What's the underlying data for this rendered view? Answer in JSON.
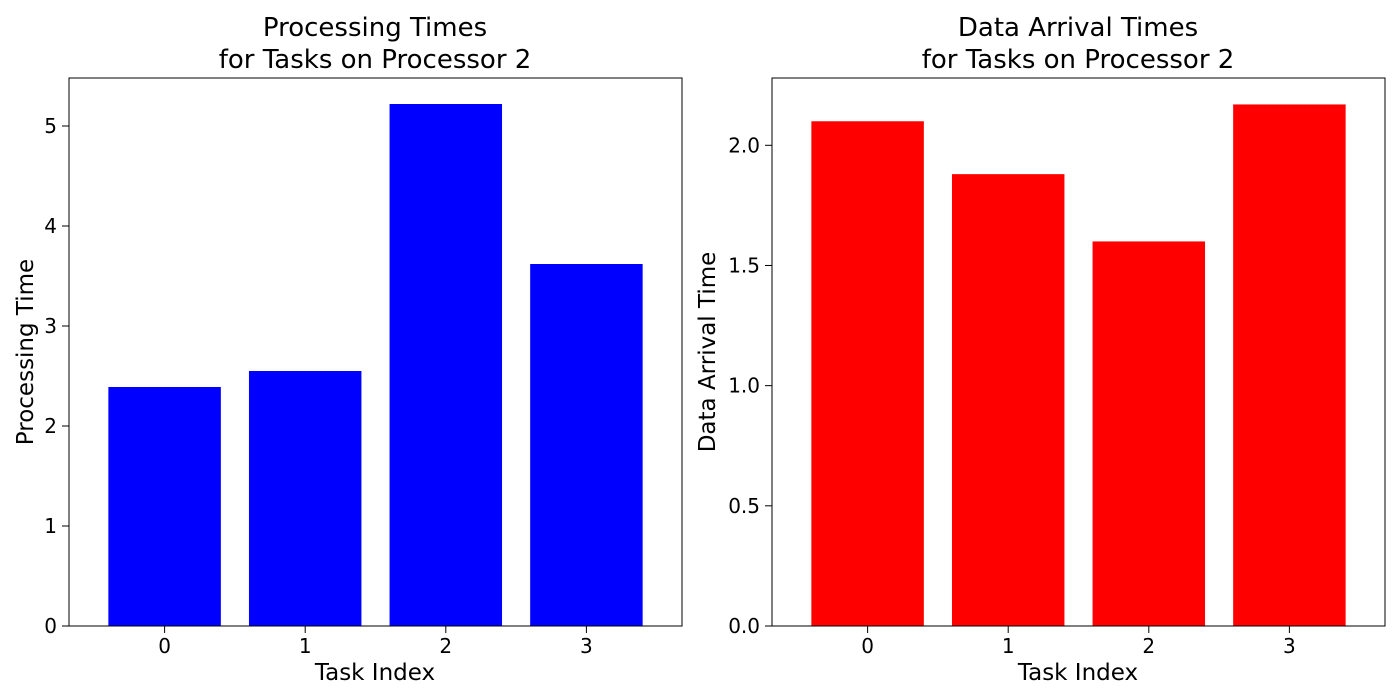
{
  "chart_data": [
    {
      "type": "bar",
      "title_lines": [
        "Processing Times",
        "for Tasks on Processor 2"
      ],
      "xlabel": "Task Index",
      "ylabel": "Processing Time",
      "categories": [
        "0",
        "1",
        "2",
        "3"
      ],
      "values": [
        2.39,
        2.55,
        5.22,
        3.62
      ],
      "ylim": [
        0,
        5.48
      ],
      "yticks": [
        0,
        1,
        2,
        3,
        4,
        5
      ],
      "ytick_labels": [
        "0",
        "1",
        "2",
        "3",
        "4",
        "5"
      ],
      "color": "#0000ff",
      "grid": false
    },
    {
      "type": "bar",
      "title_lines": [
        "Data Arrival Times",
        "for Tasks on Processor 2"
      ],
      "xlabel": "Task Index",
      "ylabel": "Data Arrival Time",
      "categories": [
        "0",
        "1",
        "2",
        "3"
      ],
      "values": [
        2.1,
        1.88,
        1.6,
        2.17
      ],
      "ylim": [
        0,
        2.28
      ],
      "yticks": [
        0,
        0.5,
        1,
        1.5,
        2
      ],
      "ytick_labels": [
        "0.0",
        "0.5",
        "1.0",
        "1.5",
        "2.0"
      ],
      "color": "#ff0000",
      "grid": false
    }
  ]
}
